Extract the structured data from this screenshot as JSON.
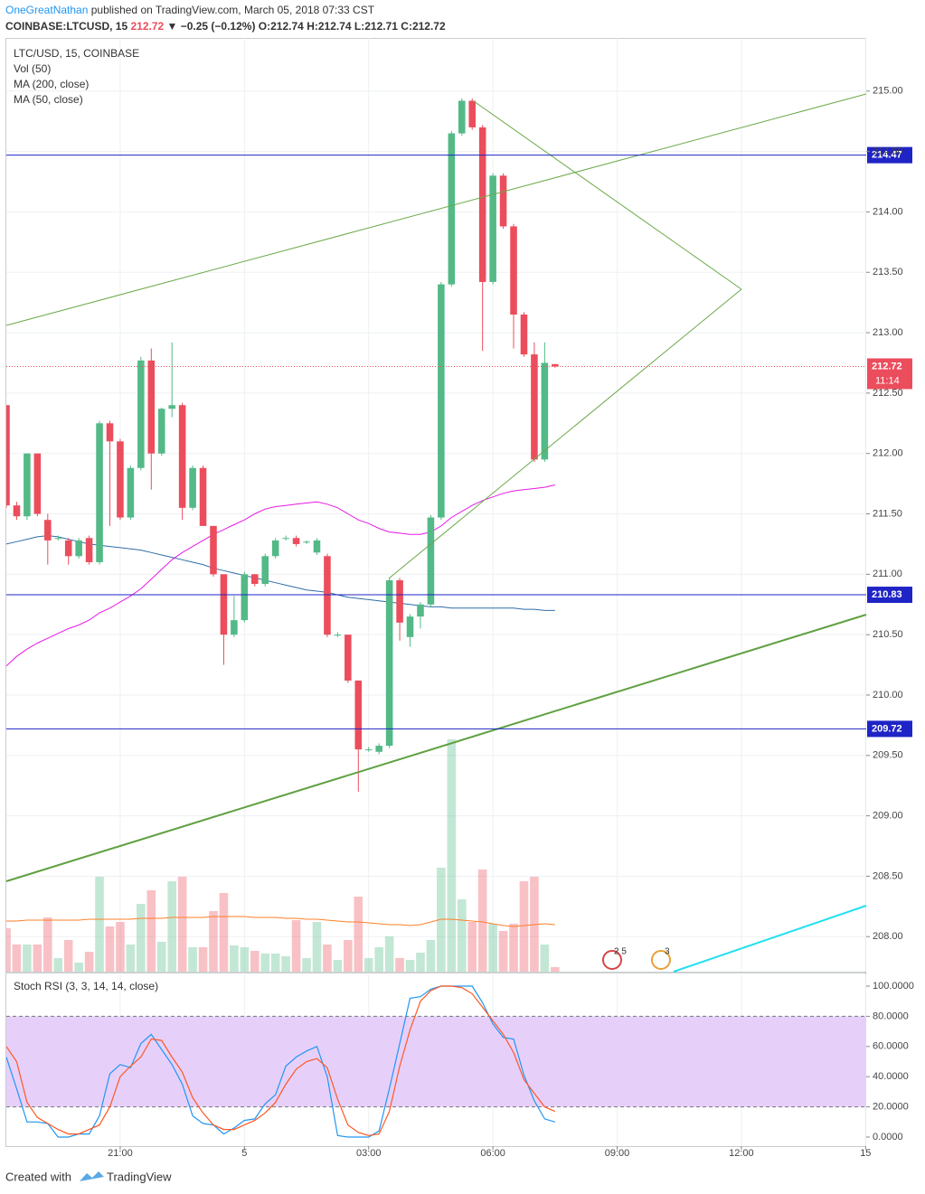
{
  "header": {
    "author": "OneGreatNathan",
    "published": "published on TradingView.com, March 05, 2018 07:33 CST",
    "symbol": "COINBASE:LTCUSD, 15",
    "price": "212.72",
    "change": "▼ −0.25 (−0.12%)",
    "open": "O:212.74",
    "high": "H:212.74",
    "low": "L:212.71",
    "close": "C:212.72"
  },
  "events": [
    "2 5",
    "3"
  ],
  "footer": {
    "created": "Created with",
    "brand": "TradingView"
  },
  "chart_data": [
    {
      "type": "candlestick",
      "title": "LTC/USD, 15, COINBASE",
      "up_color": "#53b987",
      "down_color": "#eb4d5c",
      "open": [
        212.4,
        211.57,
        211.48,
        212.0,
        211.45,
        211.3,
        211.28,
        211.15,
        211.3,
        211.1,
        212.25,
        212.1,
        211.47,
        211.88,
        212.77,
        212.0,
        212.37,
        212.4,
        211.55,
        211.88,
        211.4,
        211.0,
        210.5,
        210.62,
        211.0,
        210.92,
        211.15,
        211.3,
        211.3,
        211.27,
        211.18,
        211.15,
        210.5,
        210.5,
        210.12,
        209.55,
        209.53,
        209.58,
        210.95,
        210.48,
        210.65,
        210.75,
        211.47,
        213.4,
        214.65,
        214.92,
        214.7,
        213.42,
        214.3,
        213.88,
        213.15,
        212.82,
        211.95,
        212.74
      ],
      "high": [
        212.4,
        211.6,
        212.0,
        212.0,
        211.5,
        211.32,
        211.3,
        211.3,
        211.32,
        212.27,
        212.27,
        212.12,
        211.9,
        212.8,
        212.87,
        212.38,
        212.92,
        212.42,
        211.9,
        211.9,
        211.4,
        211.0,
        210.82,
        211.02,
        211.0,
        211.17,
        211.3,
        211.32,
        211.32,
        211.28,
        211.3,
        211.17,
        210.52,
        210.5,
        210.12,
        209.57,
        209.6,
        210.97,
        210.97,
        210.67,
        210.77,
        211.49,
        213.42,
        214.67,
        214.94,
        214.94,
        214.72,
        214.32,
        214.32,
        213.9,
        213.17,
        212.92,
        212.92,
        212.74
      ],
      "low": [
        211.55,
        211.45,
        211.45,
        211.48,
        211.08,
        211.28,
        211.08,
        211.13,
        211.08,
        211.08,
        211.4,
        211.45,
        211.45,
        211.86,
        211.7,
        211.98,
        212.3,
        211.45,
        211.53,
        211.4,
        210.98,
        210.25,
        210.48,
        210.6,
        210.9,
        210.9,
        211.13,
        211.28,
        211.23,
        211.25,
        211.16,
        210.48,
        210.48,
        210.1,
        209.2,
        209.53,
        209.51,
        209.56,
        210.45,
        210.4,
        210.55,
        210.73,
        211.45,
        213.38,
        214.63,
        214.68,
        212.85,
        213.4,
        213.86,
        212.87,
        212.8,
        211.93,
        211.93,
        212.71
      ],
      "close": [
        211.57,
        211.48,
        212.0,
        211.5,
        211.28,
        211.3,
        211.15,
        211.28,
        211.1,
        212.25,
        212.1,
        211.47,
        211.88,
        212.77,
        212.0,
        212.37,
        212.4,
        211.55,
        211.88,
        211.4,
        211.0,
        210.5,
        210.62,
        211.0,
        210.92,
        211.15,
        211.28,
        211.3,
        211.25,
        211.27,
        211.28,
        210.5,
        210.5,
        210.12,
        209.55,
        209.55,
        209.58,
        210.95,
        210.6,
        210.65,
        210.75,
        211.47,
        213.4,
        214.65,
        214.92,
        214.7,
        213.42,
        214.3,
        213.88,
        213.15,
        212.82,
        211.95,
        212.75,
        212.72
      ],
      "volume": {
        "name": "Vol (50)",
        "values": [
          48,
          30,
          30,
          30,
          60,
          15,
          35,
          10,
          22,
          105,
          50,
          55,
          30,
          75,
          90,
          33,
          100,
          105,
          27,
          27,
          67,
          87,
          29,
          27,
          23,
          20,
          20,
          17,
          57,
          15,
          55,
          30,
          13,
          35,
          83,
          15,
          27,
          39,
          15,
          13,
          21,
          35,
          115,
          257,
          80,
          55,
          113,
          53,
          45,
          53,
          100,
          105,
          30,
          5
        ],
        "ma": [
          56,
          56,
          57,
          57,
          57,
          57,
          57,
          57,
          58,
          58,
          58,
          58,
          58,
          59,
          59,
          59,
          60,
          60,
          60,
          60,
          61,
          61,
          61,
          61,
          60,
          60,
          60,
          59,
          59,
          58,
          58,
          57,
          56,
          55,
          55,
          54,
          53,
          52,
          52,
          51,
          52,
          55,
          58,
          58,
          57,
          56,
          55,
          53,
          51,
          50,
          51,
          52,
          53,
          52
        ],
        "ma_color": "#ff7f27"
      },
      "series": [
        {
          "name": "MA (200, close)",
          "color": "#2e6ea6",
          "values": [
            211.25,
            211.27,
            211.29,
            211.31,
            211.32,
            211.31,
            211.29,
            211.27,
            211.25,
            211.24,
            211.23,
            211.22,
            211.21,
            211.2,
            211.18,
            211.16,
            211.14,
            211.12,
            211.1,
            211.08,
            211.05,
            211.03,
            211.01,
            210.99,
            210.97,
            210.95,
            210.93,
            210.91,
            210.89,
            210.87,
            210.86,
            210.85,
            210.83,
            210.81,
            210.8,
            210.79,
            210.78,
            210.77,
            210.76,
            210.75,
            210.74,
            210.73,
            210.73,
            210.72,
            210.72,
            210.72,
            210.72,
            210.72,
            210.72,
            210.72,
            210.71,
            210.71,
            210.7,
            210.7
          ]
        },
        {
          "name": "MA (50, close)",
          "color": "#e619e6",
          "values": [
            210.24,
            210.32,
            210.38,
            210.43,
            210.47,
            210.51,
            210.55,
            210.58,
            210.62,
            210.68,
            210.72,
            210.77,
            210.82,
            210.88,
            210.96,
            211.04,
            211.12,
            211.18,
            211.23,
            211.28,
            211.33,
            211.37,
            211.41,
            211.45,
            211.5,
            211.54,
            211.56,
            211.57,
            211.58,
            211.59,
            211.6,
            211.58,
            211.55,
            211.5,
            211.45,
            211.42,
            211.38,
            211.35,
            211.34,
            211.33,
            211.33,
            211.35,
            211.4,
            211.47,
            211.52,
            211.57,
            211.61,
            211.64,
            211.67,
            211.69,
            211.7,
            211.71,
            211.72,
            211.74
          ]
        }
      ],
      "levels": [
        {
          "value": 214.47,
          "label": "214.47"
        },
        {
          "value": 210.83,
          "label": "210.83"
        },
        {
          "value": 209.72,
          "label": "209.72"
        }
      ],
      "level_color": "#1f24c6",
      "last": {
        "value": 212.72,
        "label": "212.72",
        "countdown": "11:14",
        "color": "#eb4d5c"
      },
      "ylim": [
        207.71,
        215.44
      ],
      "yticks": [
        {
          "value": 208,
          "label": "208.00"
        },
        {
          "value": 208.5,
          "label": "208.50"
        },
        {
          "value": 209,
          "label": "209.00"
        },
        {
          "value": 209.5,
          "label": "209.50"
        },
        {
          "value": 210,
          "label": "210.00"
        },
        {
          "value": 210.5,
          "label": "210.50"
        },
        {
          "value": 211,
          "label": "211.00"
        },
        {
          "value": 211.5,
          "label": "211.50"
        },
        {
          "value": 212,
          "label": "212.00"
        },
        {
          "value": 212.5,
          "label": "212.50"
        },
        {
          "value": 213,
          "label": "213.00"
        },
        {
          "value": 213.5,
          "label": "213.50"
        },
        {
          "value": 214,
          "label": "214.00"
        },
        {
          "value": 214.5,
          "label": "214.50"
        },
        {
          "value": 215,
          "label": "215.00"
        }
      ],
      "grid": true
    },
    {
      "type": "line",
      "title": "Stoch RSI (3, 3, 14, 14, close)",
      "series": [
        {
          "color": "#2196f3",
          "values": [
            53,
            32,
            10,
            10,
            9,
            0,
            0,
            2,
            2,
            14,
            42,
            48,
            46,
            62,
            68,
            58,
            48,
            35,
            14,
            9,
            8,
            2,
            6,
            11,
            12,
            22,
            28,
            47,
            53,
            57,
            60,
            40,
            1,
            0,
            0,
            0,
            4,
            32,
            62,
            92,
            93,
            98,
            100,
            100,
            100,
            100,
            89,
            75,
            66,
            65,
            41,
            24,
            12,
            10
          ]
        },
        {
          "color": "#ff5722",
          "values": [
            60,
            50,
            23,
            13,
            9,
            5,
            2,
            2,
            5,
            8,
            20,
            40,
            47,
            53,
            65,
            64,
            53,
            43,
            26,
            16,
            8,
            5,
            5,
            8,
            11,
            16,
            23,
            35,
            45,
            50,
            52,
            46,
            25,
            8,
            3,
            1,
            2,
            17,
            47,
            71,
            90,
            97,
            100,
            100,
            99,
            95,
            86,
            77,
            68,
            56,
            38,
            29,
            20,
            17
          ]
        }
      ],
      "bands": [
        20,
        80
      ],
      "band_color": "#e6d0fa",
      "ylim": [
        -6,
        107.8
      ],
      "yticks": [
        {
          "value": 0,
          "label": "0.0000"
        },
        {
          "value": 20,
          "label": "20.0000"
        },
        {
          "value": 40,
          "label": "40.0000"
        },
        {
          "value": 60,
          "label": "60.0000"
        },
        {
          "value": 80,
          "label": "80.0000"
        },
        {
          "value": 100,
          "label": "100.0000"
        }
      ],
      "xlim": [
        0,
        83.06
      ],
      "xticks": [
        {
          "value": 11,
          "label": "21:00"
        },
        {
          "value": 23,
          "label": "5"
        },
        {
          "value": 35,
          "label": "03:00"
        },
        {
          "value": 47,
          "label": "06:00"
        },
        {
          "value": 59,
          "label": "09:00"
        },
        {
          "value": 71,
          "label": "12:00"
        },
        {
          "value": 83,
          "label": "15"
        }
      ],
      "grid": true
    }
  ]
}
